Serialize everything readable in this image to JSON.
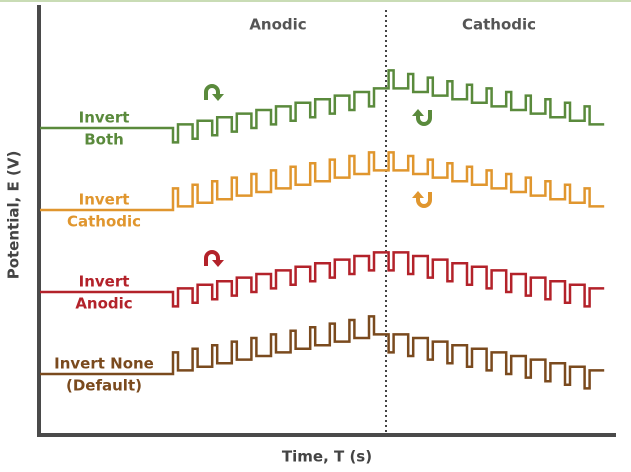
{
  "regions": [
    "Anodic",
    "Cathodic"
  ],
  "traces": [
    {
      "label_lines": [
        "Invert",
        "Both"
      ],
      "color": "#5a8a3c",
      "anodic_pulse": "down",
      "cathodic_pulse": "up"
    },
    {
      "label_lines": [
        "Invert",
        "Cathodic"
      ],
      "color": "#e0962e",
      "anodic_pulse": "up",
      "cathodic_pulse": "up"
    },
    {
      "label_lines": [
        "Invert",
        "Anodic"
      ],
      "color": "#b3222a",
      "anodic_pulse": "down",
      "cathodic_pulse": "down"
    },
    {
      "label_lines": [
        "Invert None",
        "(Default)"
      ],
      "color": "#7a4a1e",
      "anodic_pulse": "up",
      "cathodic_pulse": "down"
    }
  ],
  "x_axis": {
    "label": "Time, T (s)"
  },
  "y_axis": {
    "label": "Potential, E (V)"
  }
}
